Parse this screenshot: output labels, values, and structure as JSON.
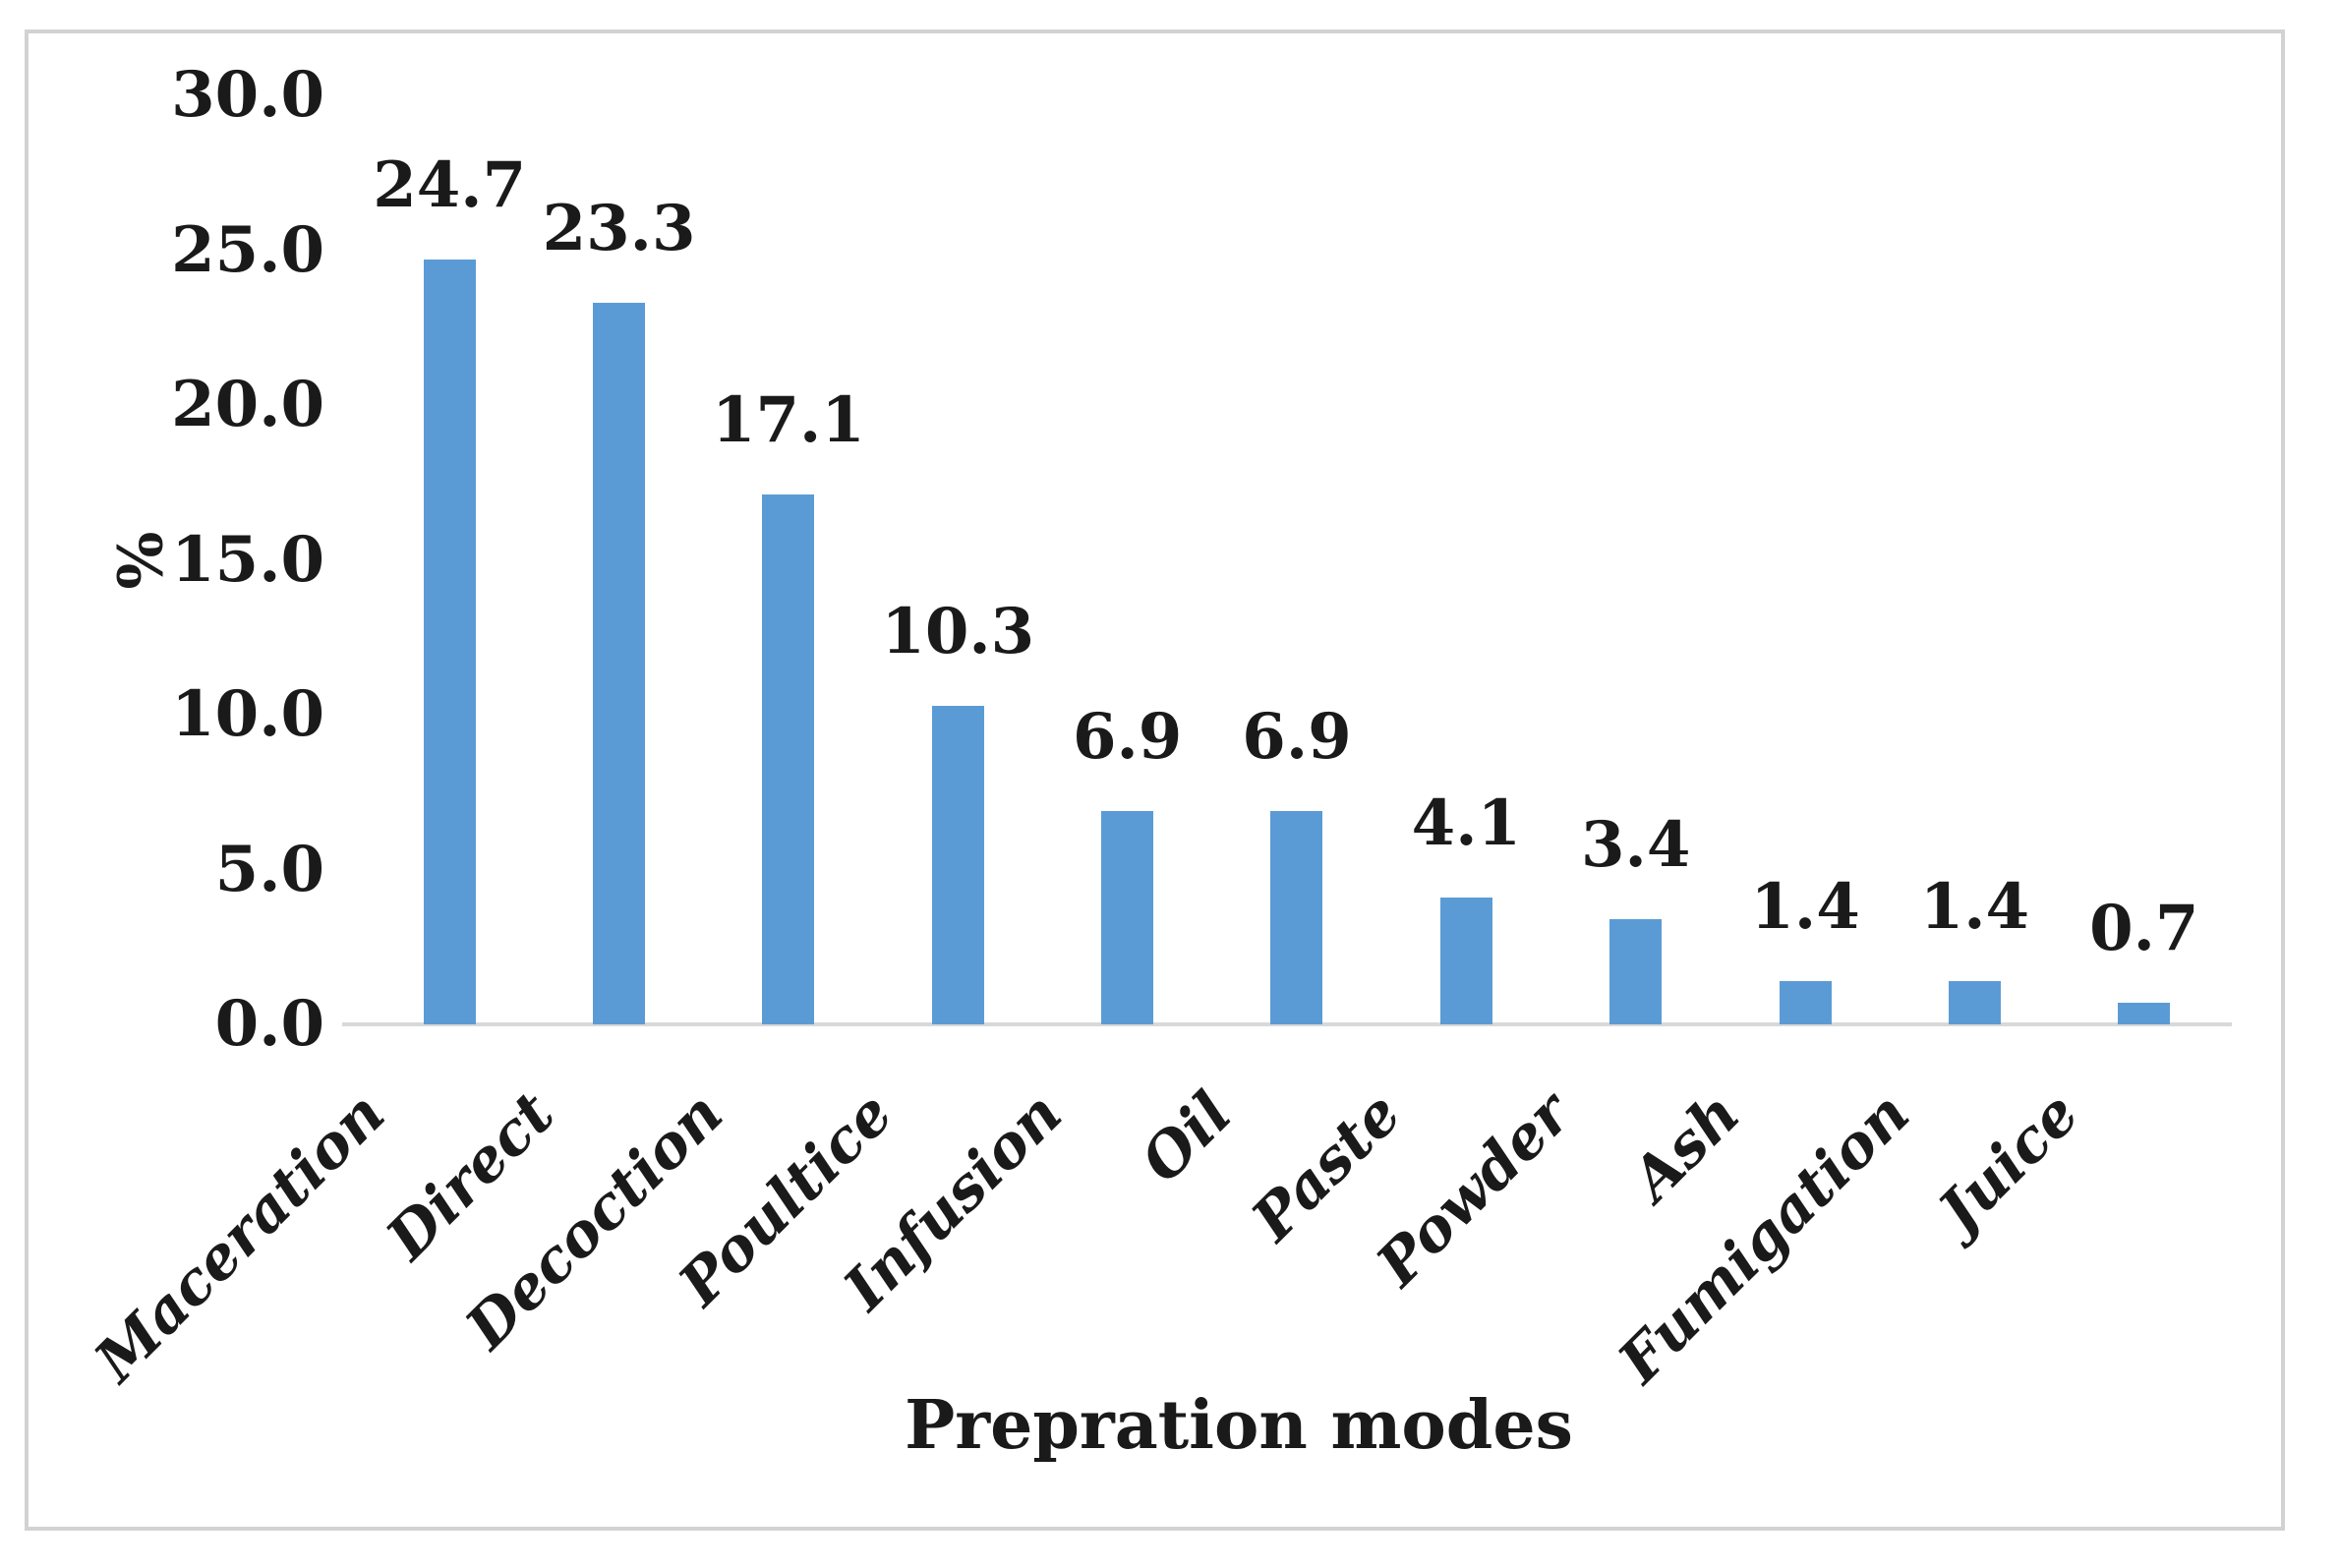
{
  "chart_data": {
    "type": "bar",
    "title": "",
    "xlabel": "Prepration modes",
    "ylabel": "%",
    "categories": [
      "Maceration",
      "Direct",
      "Decoction",
      "Poultice",
      "Infusion",
      "Oil",
      "Paste",
      "Powder",
      "Ash",
      "Fumigation",
      "Juice"
    ],
    "values": [
      24.7,
      23.3,
      17.1,
      10.3,
      6.9,
      6.9,
      4.1,
      3.4,
      1.4,
      1.4,
      0.7
    ],
    "data_labels": [
      "24.7",
      "23.3",
      "17.1",
      "10.3",
      "6.9",
      "6.9",
      "4.1",
      "3.4",
      "1.4",
      "1.4",
      "0.7"
    ],
    "ylim": [
      0,
      30
    ],
    "ytick_step": 5,
    "ytick_labels": [
      "0.0",
      "5.0",
      "10.0",
      "15.0",
      "20.0",
      "25.0",
      "30.0"
    ],
    "grid": false,
    "legend_position": "none",
    "bar_color": "#5b9bd5",
    "axis_line_color": "#d9d9d9",
    "text_color": "#1a1a1a",
    "frame_border_color": "#d2d2d2"
  }
}
